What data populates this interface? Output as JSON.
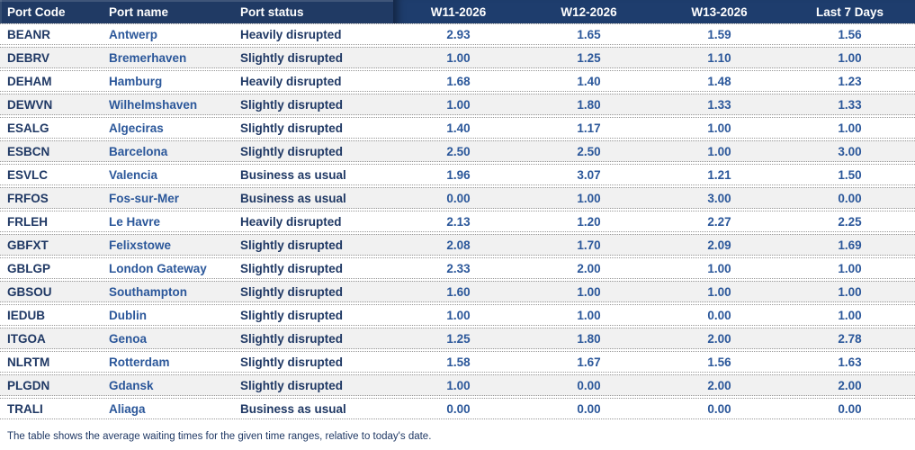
{
  "table": {
    "columns": [
      {
        "id": "port_code",
        "label": "Port Code"
      },
      {
        "id": "port_name",
        "label": "Port name"
      },
      {
        "id": "port_status",
        "label": "Port status"
      },
      {
        "id": "w11",
        "label": "W11-2026"
      },
      {
        "id": "w12",
        "label": "W12-2026"
      },
      {
        "id": "w13",
        "label": "W13-2026"
      },
      {
        "id": "last7",
        "label": "Last 7 Days"
      }
    ],
    "rows": [
      {
        "code": "BEANR",
        "name": "Antwerp",
        "status": "Heavily disrupted",
        "values": [
          "2.93",
          "1.65",
          "1.59",
          "1.56"
        ]
      },
      {
        "code": "DEBRV",
        "name": "Bremerhaven",
        "status": "Slightly disrupted",
        "values": [
          "1.00",
          "1.25",
          "1.10",
          "1.00"
        ]
      },
      {
        "code": "DEHAM",
        "name": "Hamburg",
        "status": "Heavily disrupted",
        "values": [
          "1.68",
          "1.40",
          "1.48",
          "1.23"
        ]
      },
      {
        "code": "DEWVN",
        "name": "Wilhelmshaven",
        "status": "Slightly disrupted",
        "values": [
          "1.00",
          "1.80",
          "1.33",
          "1.33"
        ]
      },
      {
        "code": "ESALG",
        "name": "Algeciras",
        "status": "Slightly disrupted",
        "values": [
          "1.40",
          "1.17",
          "1.00",
          "1.00"
        ]
      },
      {
        "code": "ESBCN",
        "name": "Barcelona",
        "status": "Slightly disrupted",
        "values": [
          "2.50",
          "2.50",
          "1.00",
          "3.00"
        ]
      },
      {
        "code": "ESVLC",
        "name": "Valencia",
        "status": "Business as usual",
        "values": [
          "1.96",
          "3.07",
          "1.21",
          "1.50"
        ]
      },
      {
        "code": "FRFOS",
        "name": "Fos-sur-Mer",
        "status": "Business as usual",
        "values": [
          "0.00",
          "1.00",
          "3.00",
          "0.00"
        ]
      },
      {
        "code": "FRLEH",
        "name": "Le Havre",
        "status": "Heavily disrupted",
        "values": [
          "2.13",
          "1.20",
          "2.27",
          "2.25"
        ]
      },
      {
        "code": "GBFXT",
        "name": "Felixstowe",
        "status": "Slightly disrupted",
        "values": [
          "2.08",
          "1.70",
          "2.09",
          "1.69"
        ]
      },
      {
        "code": "GBLGP",
        "name": "London Gateway",
        "status": "Slightly disrupted",
        "values": [
          "2.33",
          "2.00",
          "1.00",
          "1.00"
        ]
      },
      {
        "code": "GBSOU",
        "name": "Southampton",
        "status": "Slightly disrupted",
        "values": [
          "1.60",
          "1.00",
          "1.00",
          "1.00"
        ]
      },
      {
        "code": "IEDUB",
        "name": "Dublin",
        "status": "Slightly disrupted",
        "values": [
          "1.00",
          "1.00",
          "0.00",
          "1.00"
        ]
      },
      {
        "code": "ITGOA",
        "name": "Genoa",
        "status": "Slightly disrupted",
        "values": [
          "1.25",
          "1.80",
          "2.00",
          "2.78"
        ]
      },
      {
        "code": "NLRTM",
        "name": "Rotterdam",
        "status": "Slightly disrupted",
        "values": [
          "1.58",
          "1.67",
          "1.56",
          "1.63"
        ]
      },
      {
        "code": "PLGDN",
        "name": "Gdansk",
        "status": "Slightly disrupted",
        "values": [
          "1.00",
          "0.00",
          "2.00",
          "2.00"
        ]
      },
      {
        "code": "TRALI",
        "name": "Aliaga",
        "status": "Business as usual",
        "values": [
          "0.00",
          "0.00",
          "0.00",
          "0.00"
        ]
      }
    ]
  },
  "footnote": "The table shows the average waiting times for the given time ranges, relative to today's date.",
  "colors": {
    "header_left_bg": "#203A64",
    "header_right_bg": "#1E3D6D",
    "header_text": "#FFFFFF",
    "code_status_text": "#1F3864",
    "name_value_text": "#2B579A",
    "row_bg": "#FFFFFF",
    "row_alt_bg": "#F1F1F1",
    "row_border": "#969696"
  }
}
